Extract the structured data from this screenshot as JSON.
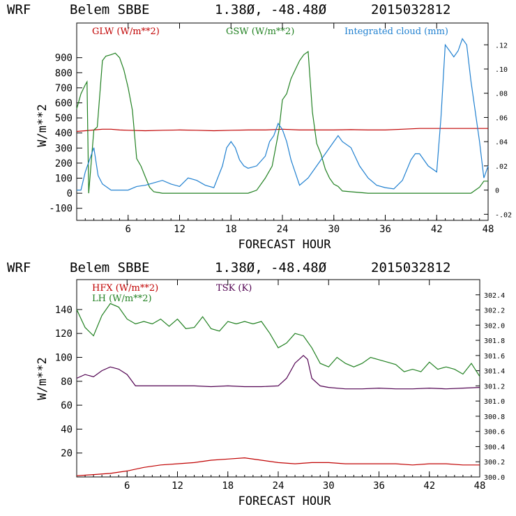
{
  "chart_data": [
    {
      "type": "line",
      "title": {
        "model": "WRF",
        "station": "Belem SBBE",
        "coords": "1.38Ø, -48.48Ø",
        "run": "2015032812"
      },
      "xlabel": "FORECAST HOUR",
      "ylabel": "W/m**2",
      "xlim": [
        0,
        48
      ],
      "ylim": [
        -180,
        1130
      ],
      "y2lim": [
        -0.025,
        0.138
      ],
      "xticks": [
        "6",
        "12",
        "18",
        "24",
        "30",
        "36",
        "42",
        "48"
      ],
      "yticks": [
        "-100",
        "0",
        "100",
        "200",
        "300",
        "400",
        "500",
        "600",
        "700",
        "800",
        "900"
      ],
      "y2ticks": [
        "-.02",
        "0",
        ".02",
        ".04",
        ".06",
        ".08",
        ".10",
        ".12"
      ],
      "legend_placement": "top",
      "series": [
        {
          "name": "GLW (W/m**2)",
          "axis": "left",
          "color": "#c00000",
          "x": [
            0,
            1,
            2,
            3,
            4,
            5,
            6,
            8,
            10,
            12,
            14,
            16,
            18,
            20,
            22,
            24,
            26,
            28,
            30,
            32,
            34,
            36,
            38,
            40,
            42,
            44,
            46,
            48
          ],
          "y": [
            410,
            415,
            420,
            425,
            425,
            420,
            418,
            415,
            418,
            420,
            418,
            415,
            418,
            420,
            420,
            425,
            420,
            420,
            420,
            422,
            420,
            420,
            425,
            430,
            430,
            430,
            430,
            430
          ]
        },
        {
          "name": "GSW (W/m**2)",
          "axis": "left",
          "color": "#208020",
          "x": [
            0,
            0.5,
            1,
            1.2,
            1.4,
            2,
            2.4,
            3,
            3.4,
            4,
            4.5,
            5,
            5.5,
            6,
            6.5,
            7,
            7.5,
            8,
            8.5,
            9,
            10,
            12,
            14,
            16,
            18,
            20,
            21,
            22,
            22.8,
            23.2,
            23.6,
            24,
            24.5,
            25,
            25.5,
            26,
            26.5,
            27,
            27.5,
            28,
            28.5,
            29,
            29.5,
            30,
            30.5,
            31,
            32,
            34,
            36,
            38,
            40,
            42,
            44,
            46,
            46.5,
            47,
            47.5,
            48
          ],
          "y": [
            560,
            660,
            720,
            740,
            0,
            420,
            440,
            880,
            910,
            920,
            930,
            900,
            820,
            700,
            550,
            230,
            180,
            110,
            40,
            10,
            0,
            0,
            0,
            0,
            0,
            0,
            20,
            100,
            180,
            300,
            420,
            620,
            660,
            760,
            820,
            880,
            920,
            940,
            540,
            330,
            260,
            160,
            100,
            60,
            45,
            15,
            10,
            0,
            0,
            0,
            0,
            0,
            0,
            0,
            20,
            40,
            80,
            80
          ]
        },
        {
          "name": "Integrated cloud (mm)",
          "axis": "right",
          "color": "#2080d0",
          "x": [
            0,
            0.5,
            1,
            1.5,
            2,
            2.5,
            3,
            4,
            5,
            6,
            7,
            8,
            9,
            10,
            11,
            12,
            13,
            14,
            15,
            16,
            17,
            17.5,
            18,
            18.5,
            19,
            19.5,
            20,
            21,
            22,
            22.5,
            23,
            23.5,
            24,
            24.5,
            25,
            26,
            27,
            28,
            29,
            30,
            30.5,
            31,
            32,
            33,
            34,
            35,
            36,
            37,
            38,
            39,
            39.5,
            40,
            41,
            42,
            42.5,
            43,
            43.5,
            44,
            44.5,
            45,
            45.5,
            46,
            47,
            47.5,
            48
          ],
          "y": [
            0,
            0,
            0.015,
            0.025,
            0.035,
            0.012,
            0.005,
            0,
            0,
            0,
            0.003,
            0.004,
            0.006,
            0.008,
            0.005,
            0.003,
            0.01,
            0.008,
            0.004,
            0.002,
            0.02,
            0.035,
            0.04,
            0.035,
            0.025,
            0.02,
            0.018,
            0.02,
            0.028,
            0.04,
            0.045,
            0.055,
            0.05,
            0.04,
            0.025,
            0.004,
            0.01,
            0.02,
            0.03,
            0.04,
            0.045,
            0.04,
            0.035,
            0.02,
            0.01,
            0.004,
            0.002,
            0.001,
            0.008,
            0.025,
            0.03,
            0.03,
            0.02,
            0.015,
            0.06,
            0.12,
            0.115,
            0.11,
            0.115,
            0.125,
            0.12,
            0.09,
            0.04,
            0.01,
            0.02
          ]
        }
      ]
    },
    {
      "type": "line",
      "title": {
        "model": "WRF",
        "station": "Belem SBBE",
        "coords": "1.38Ø, -48.48Ø",
        "run": "2015032812"
      },
      "xlabel": "FORECAST HOUR",
      "ylabel": "W/m**2",
      "xlim": [
        0,
        48
      ],
      "ylim": [
        0,
        165
      ],
      "y2lim": [
        300.0,
        302.6
      ],
      "xticks": [
        "6",
        "12",
        "18",
        "24",
        "30",
        "36",
        "42",
        "48"
      ],
      "yticks": [
        "20",
        "40",
        "60",
        "80",
        "100",
        "120",
        "140"
      ],
      "y2ticks": [
        "300.0",
        "300.2",
        "300.4",
        "300.6",
        "300.8",
        "301.0",
        "301.2",
        "301.4",
        "301.6",
        "301.8",
        "302.0",
        "302.2",
        "302.4"
      ],
      "legend_placement": "top-left",
      "series": [
        {
          "name": "HFX (W/m**2)",
          "axis": "left",
          "color": "#c00000",
          "x": [
            0,
            2,
            4,
            6,
            8,
            10,
            12,
            14,
            16,
            18,
            20,
            22,
            24,
            26,
            28,
            30,
            32,
            34,
            36,
            38,
            40,
            42,
            44,
            46,
            48
          ],
          "y": [
            1,
            2,
            3,
            5,
            8,
            10,
            11,
            12,
            14,
            15,
            16,
            14,
            12,
            11,
            12,
            12,
            11,
            11,
            11,
            11,
            10,
            11,
            11,
            10,
            10
          ]
        },
        {
          "name": "LH  (W/m**2)",
          "axis": "left",
          "color": "#208020",
          "x": [
            0,
            1,
            2,
            3,
            4,
            5,
            6,
            7,
            8,
            9,
            10,
            11,
            12,
            13,
            14,
            15,
            16,
            17,
            18,
            19,
            20,
            21,
            22,
            23,
            24,
            25,
            26,
            27,
            28,
            29,
            30,
            31,
            32,
            33,
            34,
            35,
            36,
            37,
            38,
            39,
            40,
            41,
            42,
            43,
            44,
            45,
            46,
            47,
            48
          ],
          "y": [
            140,
            125,
            118,
            135,
            145,
            142,
            132,
            128,
            130,
            128,
            132,
            126,
            132,
            124,
            125,
            134,
            124,
            122,
            130,
            128,
            130,
            128,
            130,
            120,
            108,
            112,
            120,
            118,
            108,
            95,
            92,
            100,
            95,
            92,
            95,
            100,
            98,
            96,
            94,
            88,
            90,
            88,
            96,
            90,
            92,
            90,
            86,
            95,
            84
          ]
        },
        {
          "name": "TSK (K)",
          "axis": "right",
          "color": "#500050",
          "x": [
            0,
            1,
            2,
            3,
            4,
            5,
            6,
            7,
            8,
            10,
            12,
            14,
            16,
            18,
            20,
            22,
            24,
            25,
            26,
            27,
            27.5,
            28,
            29,
            30,
            32,
            34,
            36,
            38,
            40,
            42,
            44,
            46,
            48
          ],
          "y": [
            301.3,
            301.35,
            301.32,
            301.4,
            301.45,
            301.42,
            301.35,
            301.2,
            301.2,
            301.2,
            301.2,
            301.2,
            301.19,
            301.2,
            301.19,
            301.19,
            301.2,
            301.3,
            301.5,
            301.6,
            301.55,
            301.3,
            301.2,
            301.18,
            301.16,
            301.16,
            301.17,
            301.16,
            301.16,
            301.17,
            301.16,
            301.17,
            301.18
          ]
        }
      ]
    }
  ]
}
